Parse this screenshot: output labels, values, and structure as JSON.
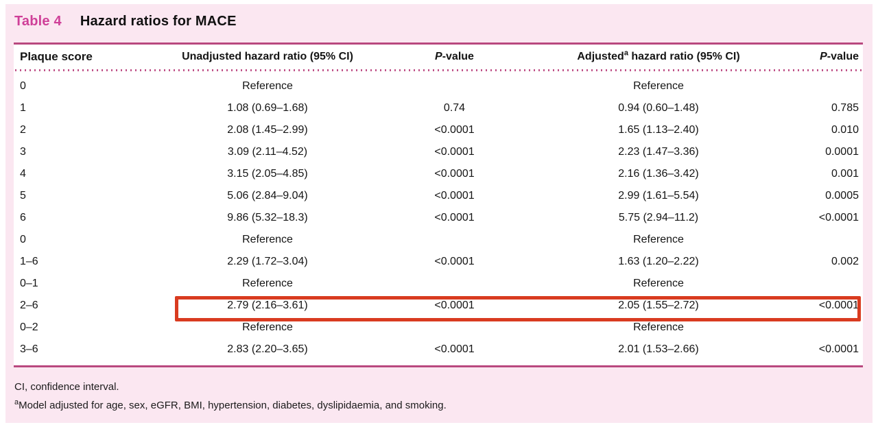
{
  "colors": {
    "card_bg": "#fbe7f1",
    "title_pink": "#cf3f98",
    "rule_magenta": "#b9487f",
    "dot_magenta": "#c05389",
    "highlight_red": "#d93b20"
  },
  "table": {
    "label": "Table 4",
    "title": "Hazard ratios for MACE",
    "header": {
      "col1": "Plaque score",
      "col2": "Unadjusted hazard ratio (95% CI)",
      "p_italic": "P",
      "p_suffix": "-value",
      "adjusted_prefix": "Adjusted",
      "adjusted_sup": "a",
      "adjusted_suffix": " hazard ratio (95% CI)"
    },
    "rows": [
      {
        "score": "0",
        "unadjusted": "Reference",
        "p1": "",
        "adjusted": "Reference",
        "p2": "",
        "highlighted": false
      },
      {
        "score": "1",
        "unadjusted": "1.08 (0.69–1.68)",
        "p1": "0.74",
        "adjusted": "0.94 (0.60–1.48)",
        "p2": "0.785",
        "highlighted": false
      },
      {
        "score": "2",
        "unadjusted": "2.08 (1.45–2.99)",
        "p1": "<0.0001",
        "adjusted": "1.65 (1.13–2.40)",
        "p2": "0.010",
        "highlighted": false
      },
      {
        "score": "3",
        "unadjusted": "3.09 (2.11–4.52)",
        "p1": "<0.0001",
        "adjusted": "2.23 (1.47–3.36)",
        "p2": "0.0001",
        "highlighted": false
      },
      {
        "score": "4",
        "unadjusted": "3.15 (2.05–4.85)",
        "p1": "<0.0001",
        "adjusted": "2.16 (1.36–3.42)",
        "p2": "0.001",
        "highlighted": false
      },
      {
        "score": "5",
        "unadjusted": "5.06 (2.84–9.04)",
        "p1": "<0.0001",
        "adjusted": "2.99 (1.61–5.54)",
        "p2": "0.0005",
        "highlighted": false
      },
      {
        "score": "6",
        "unadjusted": "9.86 (5.32–18.3)",
        "p1": "<0.0001",
        "adjusted": "5.75 (2.94–11.2)",
        "p2": "<0.0001",
        "highlighted": false
      },
      {
        "score": "0",
        "unadjusted": "Reference",
        "p1": "",
        "adjusted": "Reference",
        "p2": "",
        "highlighted": false
      },
      {
        "score": "1–6",
        "unadjusted": "2.29 (1.72–3.04)",
        "p1": "<0.0001",
        "adjusted": "1.63 (1.20–2.22)",
        "p2": "0.002",
        "highlighted": false
      },
      {
        "score": "0–1",
        "unadjusted": "Reference",
        "p1": "",
        "adjusted": "Reference",
        "p2": "",
        "highlighted": false
      },
      {
        "score": "2–6",
        "unadjusted": "2.79 (2.16–3.61)",
        "p1": "<0.0001",
        "adjusted": "2.05 (1.55–2.72)",
        "p2": "<0.0001",
        "highlighted": true
      },
      {
        "score": "0–2",
        "unadjusted": "Reference",
        "p1": "",
        "adjusted": "Reference",
        "p2": "",
        "highlighted": false
      },
      {
        "score": "3–6",
        "unadjusted": "2.83 (2.20–3.65)",
        "p1": "<0.0001",
        "adjusted": "2.01 (1.53–2.66)",
        "p2": "<0.0001",
        "highlighted": false
      }
    ],
    "footnotes": {
      "line1": "CI, confidence interval.",
      "line2_sup": "a",
      "line2": "Model adjusted for age, sex, eGFR, BMI, hypertension, diabetes, dyslipidaemia, and smoking."
    }
  }
}
